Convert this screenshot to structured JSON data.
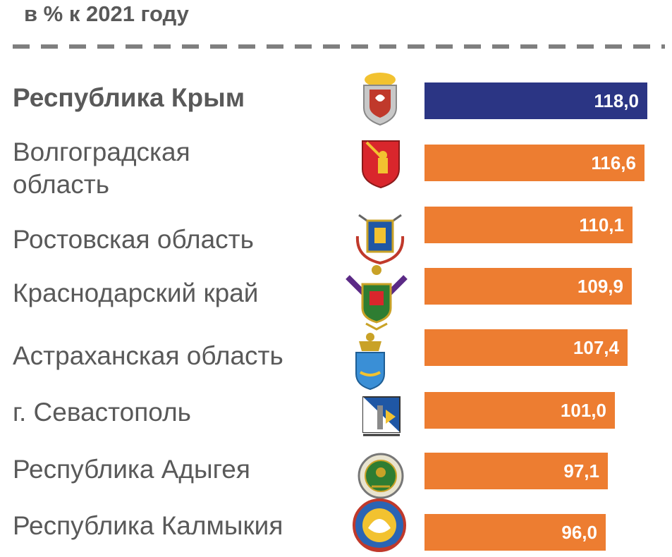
{
  "subtitle": "в % к 2021 году",
  "colors": {
    "highlight": "#2b3584",
    "default": "#ed7d31",
    "text": "#595959",
    "divider": "#7f7f7f"
  },
  "chart_data": {
    "type": "bar",
    "orientation": "horizontal",
    "title": "",
    "subtitle": "в % к 2021 году",
    "categories": [
      "Республика Крым",
      "Волгоградская область",
      "Ростовская область",
      "Краснодарский край",
      "Астраханская область",
      "г. Севастополь",
      "Республика Адыгея",
      "Республика Калмыкия"
    ],
    "values": [
      118.0,
      116.6,
      110.1,
      109.9,
      107.4,
      101.0,
      97.1,
      96.0
    ],
    "value_labels": [
      "118,0",
      "116,6",
      "110,1",
      "109,9",
      "107,4",
      "101,0",
      "97,1",
      "96,0"
    ],
    "highlighted": "Республика Крым",
    "grid": false,
    "legend": "none"
  },
  "rows": [
    {
      "label": "Республика Крым",
      "emblem": "crimea-emblem-icon",
      "bold": true
    },
    {
      "label": "Волгоградская\nобласть",
      "emblem": "volgograd-emblem-icon",
      "bold": false
    },
    {
      "label": "Ростовская область",
      "emblem": "rostov-emblem-icon",
      "bold": false
    },
    {
      "label": "Краснодарский край",
      "emblem": "krasnodar-emblem-icon",
      "bold": false
    },
    {
      "label": "Астраханская область",
      "emblem": "astrakhan-emblem-icon",
      "bold": false
    },
    {
      "label": "г. Севастополь",
      "emblem": "sevastopol-emblem-icon",
      "bold": false
    },
    {
      "label": "Республика Адыгея",
      "emblem": "adygea-emblem-icon",
      "bold": false
    },
    {
      "label": "Республика Калмыкия",
      "emblem": "kalmykia-emblem-icon",
      "bold": false
    }
  ]
}
